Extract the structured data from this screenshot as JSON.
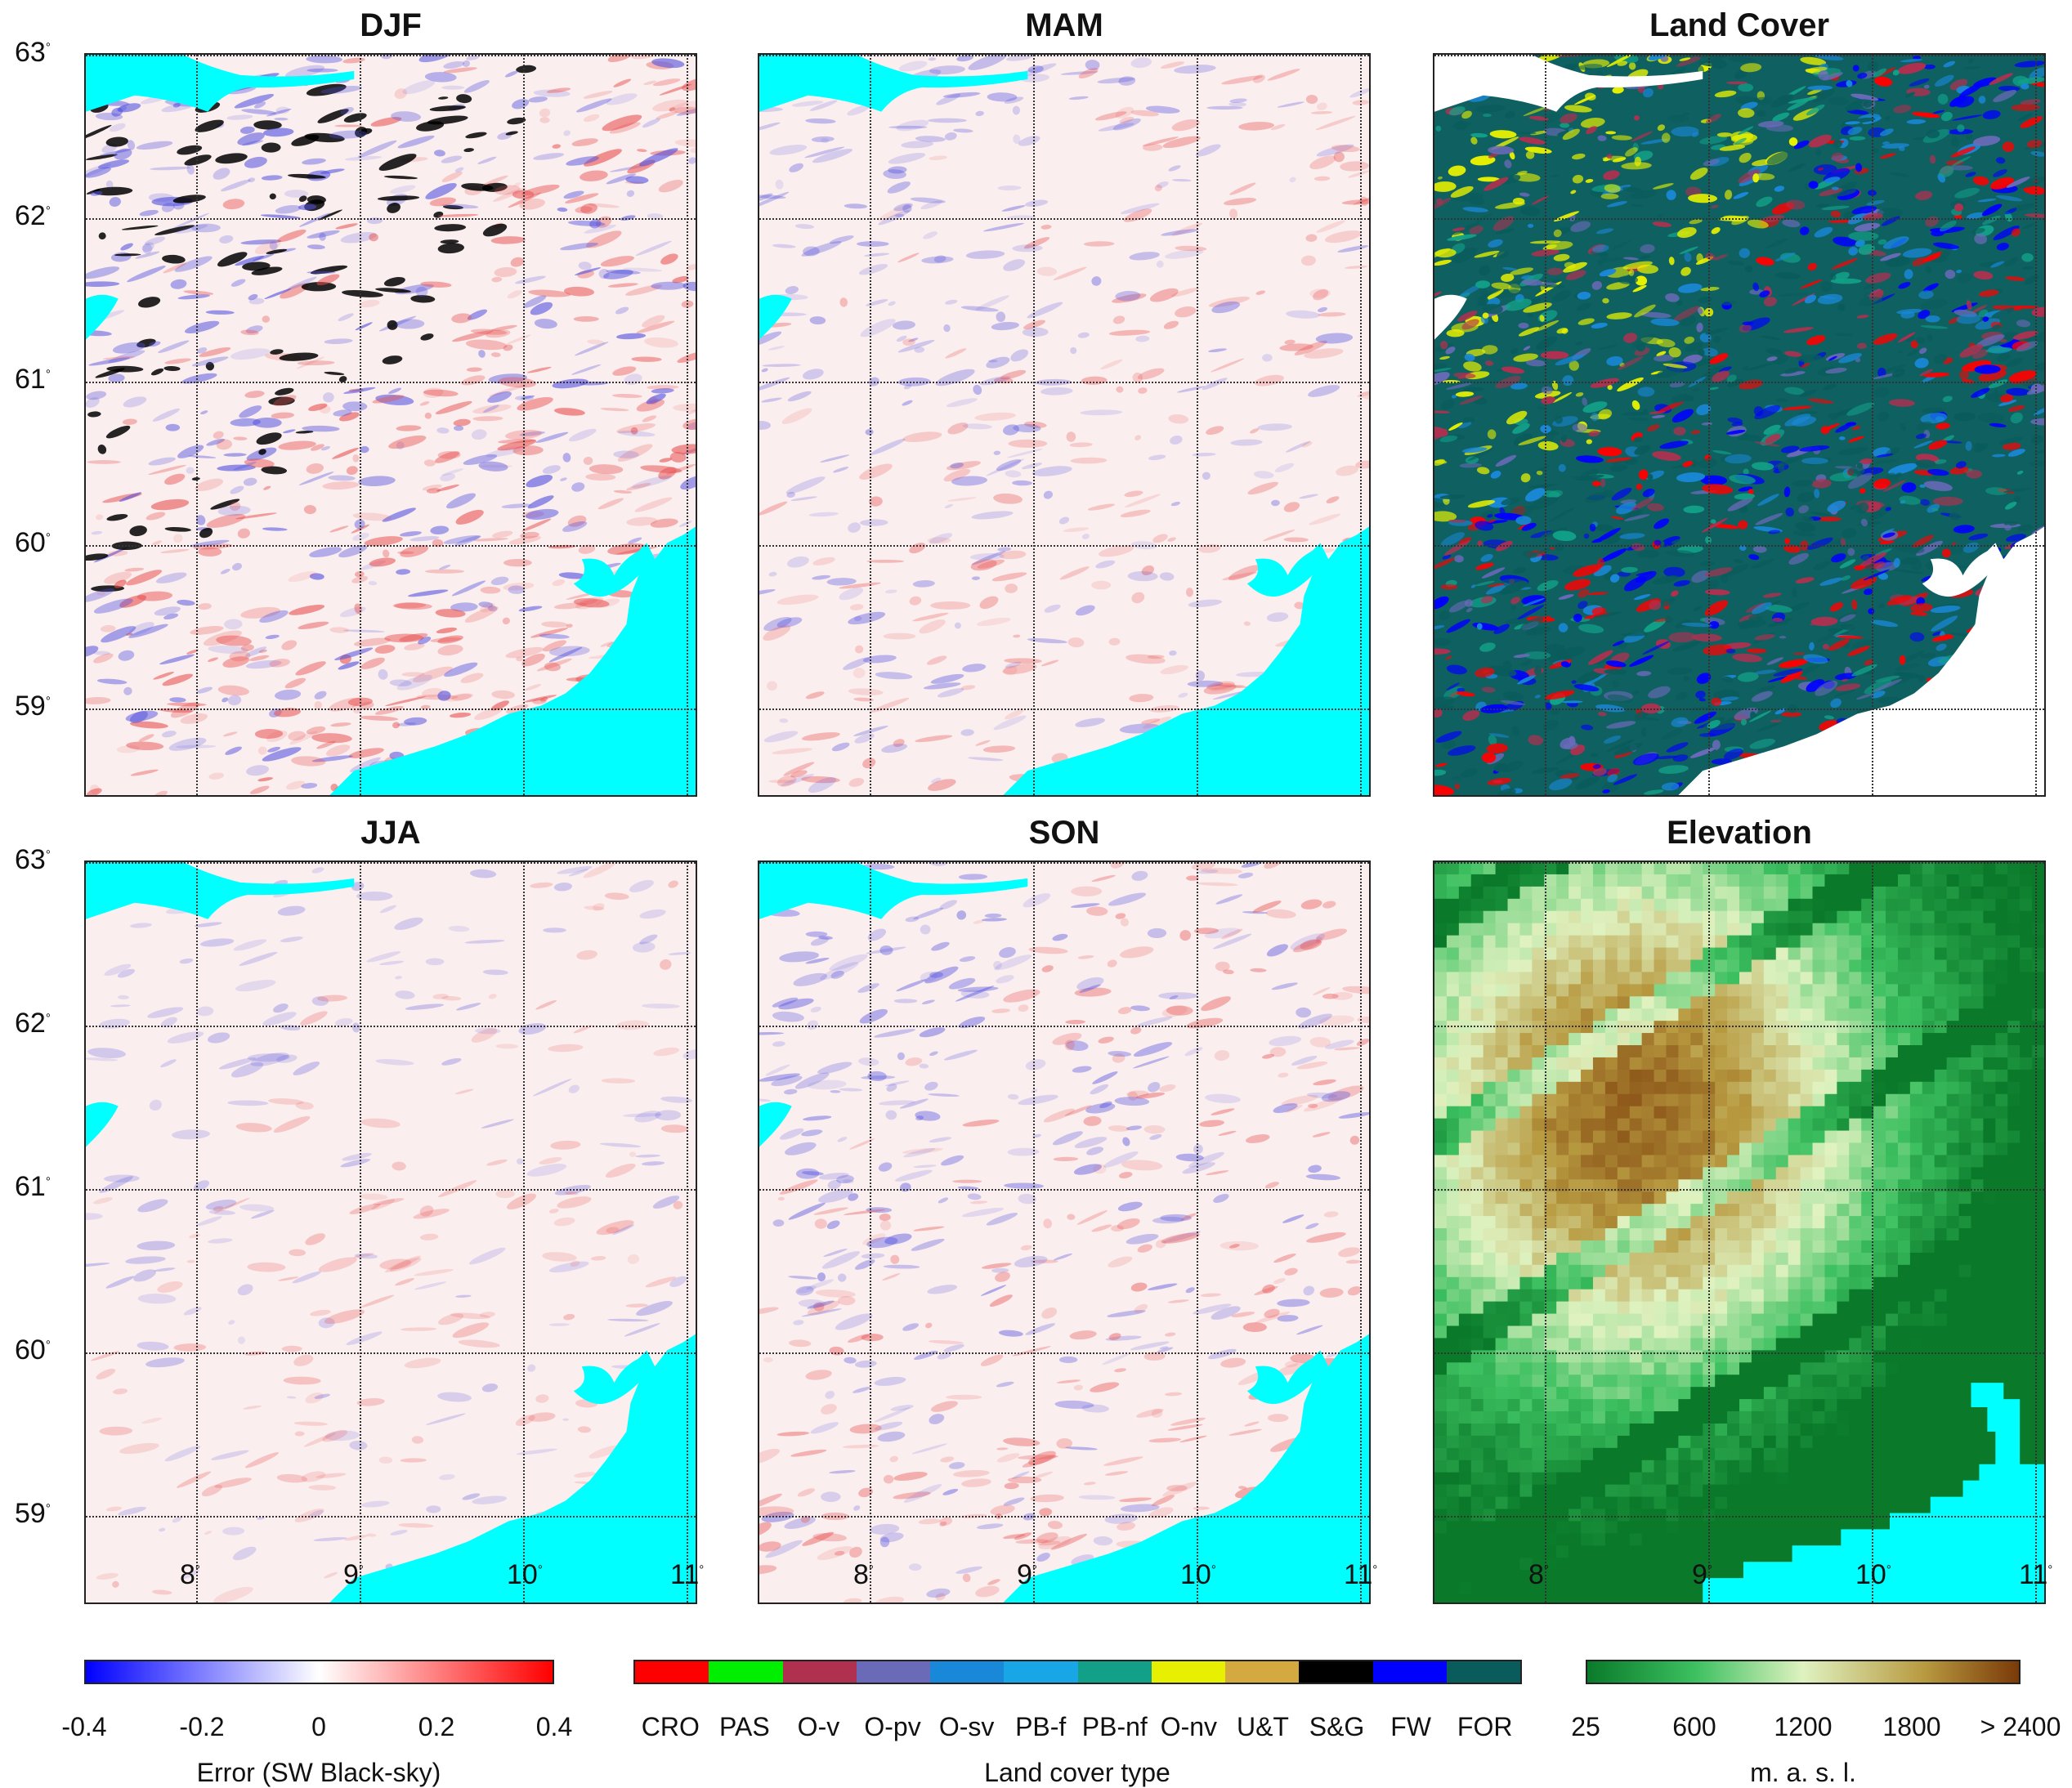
{
  "panels": {
    "djf": {
      "title": "DJF"
    },
    "mam": {
      "title": "MAM"
    },
    "land_cover": {
      "title": "Land Cover"
    },
    "jja": {
      "title": "JJA"
    },
    "son": {
      "title": "SON"
    },
    "elevation": {
      "title": "Elevation"
    }
  },
  "axes": {
    "latitudes": [
      "63",
      "62",
      "61",
      "60",
      "59"
    ],
    "longitudes": [
      "8",
      "9",
      "10",
      "11"
    ],
    "degree_symbol": "°"
  },
  "colorbars": {
    "error": {
      "ticks": [
        "-0.4",
        "-0.2",
        "0",
        "0.2",
        "0.4"
      ],
      "title": "Error (SW Black-sky)",
      "colors": {
        "min": "#0000ff",
        "mid": "#ffffff",
        "max": "#ff0000"
      }
    },
    "land_cover": {
      "classes": [
        {
          "label": "CRO",
          "color": "#ff0000"
        },
        {
          "label": "PAS",
          "color": "#00ee00"
        },
        {
          "label": "O-v",
          "color": "#b03050"
        },
        {
          "label": "O-pv",
          "color": "#6a6ab8"
        },
        {
          "label": "O-sv",
          "color": "#1a88d8"
        },
        {
          "label": "PB-f",
          "color": "#18a6e6"
        },
        {
          "label": "PB-nf",
          "color": "#12a088"
        },
        {
          "label": "O-nv",
          "color": "#e6f000"
        },
        {
          "label": "U&T",
          "color": "#d4aa40"
        },
        {
          "label": "S&G",
          "color": "#000000"
        },
        {
          "label": "FW",
          "color": "#0000ff"
        },
        {
          "label": "FOR",
          "color": "#0a5c5c"
        }
      ],
      "title": "Land cover type"
    },
    "elevation": {
      "ticks": [
        "25",
        "600",
        "1200",
        "1800",
        "> 2400"
      ],
      "title": "m. a. s. l.",
      "colors": [
        "#0a7a2a",
        "#3cc060",
        "#dff2c0",
        "#b89a40",
        "#7a3a08"
      ]
    }
  },
  "colors": {
    "water": "#00ffff",
    "grid": "#333333"
  }
}
